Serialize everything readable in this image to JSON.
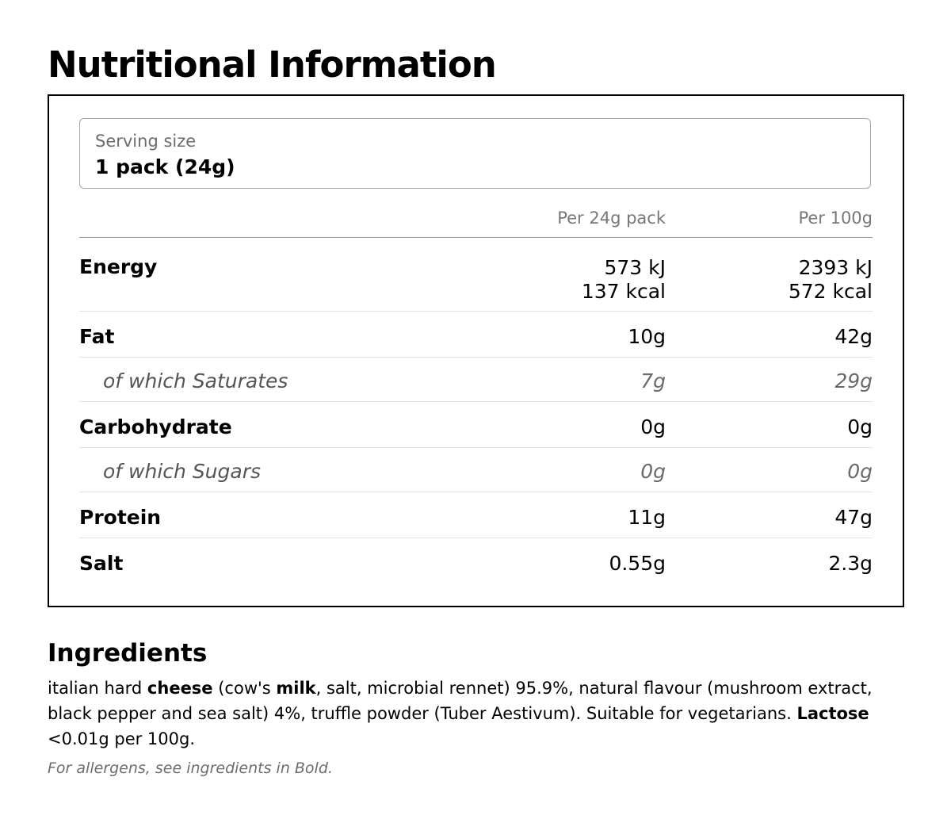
{
  "title": "Nutritional Information",
  "serving": {
    "label": "Serving size",
    "value": "1 pack (24g)"
  },
  "columns": {
    "per_pack": "Per 24g pack",
    "per_100g": "Per 100g"
  },
  "rows": [
    {
      "name": "Energy",
      "per_pack": [
        "573 kJ",
        "137 kcal"
      ],
      "per_100g": [
        "2393 kJ",
        "572 kcal"
      ],
      "sub": false
    },
    {
      "name": "Fat",
      "per_pack": [
        "10g"
      ],
      "per_100g": [
        "42g"
      ],
      "sub": false
    },
    {
      "name": "of which Saturates",
      "per_pack": [
        "7g"
      ],
      "per_100g": [
        "29g"
      ],
      "sub": true
    },
    {
      "name": "Carbohydrate",
      "per_pack": [
        "0g"
      ],
      "per_100g": [
        "0g"
      ],
      "sub": false
    },
    {
      "name": "of which Sugars",
      "per_pack": [
        "0g"
      ],
      "per_100g": [
        "0g"
      ],
      "sub": true
    },
    {
      "name": "Protein",
      "per_pack": [
        "11g"
      ],
      "per_100g": [
        "47g"
      ],
      "sub": false
    },
    {
      "name": "Salt",
      "per_pack": [
        "0.55g"
      ],
      "per_100g": [
        "2.3g"
      ],
      "sub": false
    }
  ],
  "ingredients": {
    "title": "Ingredients",
    "segments": [
      {
        "text": "italian hard ",
        "bold": false
      },
      {
        "text": "cheese",
        "bold": true
      },
      {
        "text": " (cow's ",
        "bold": false
      },
      {
        "text": "milk",
        "bold": true
      },
      {
        "text": ", salt, microbial rennet) 95.9%, natural flavour (mushroom extract, black pepper and sea salt) 4%, truffle powder (Tuber Aestivum). Suitable for vegetarians. ",
        "bold": false
      },
      {
        "text": "Lactose",
        "bold": true
      },
      {
        "text": " <0.01g per 100g.",
        "bold": false
      }
    ],
    "allergen_note": "For allergens, see ingredients in Bold."
  }
}
